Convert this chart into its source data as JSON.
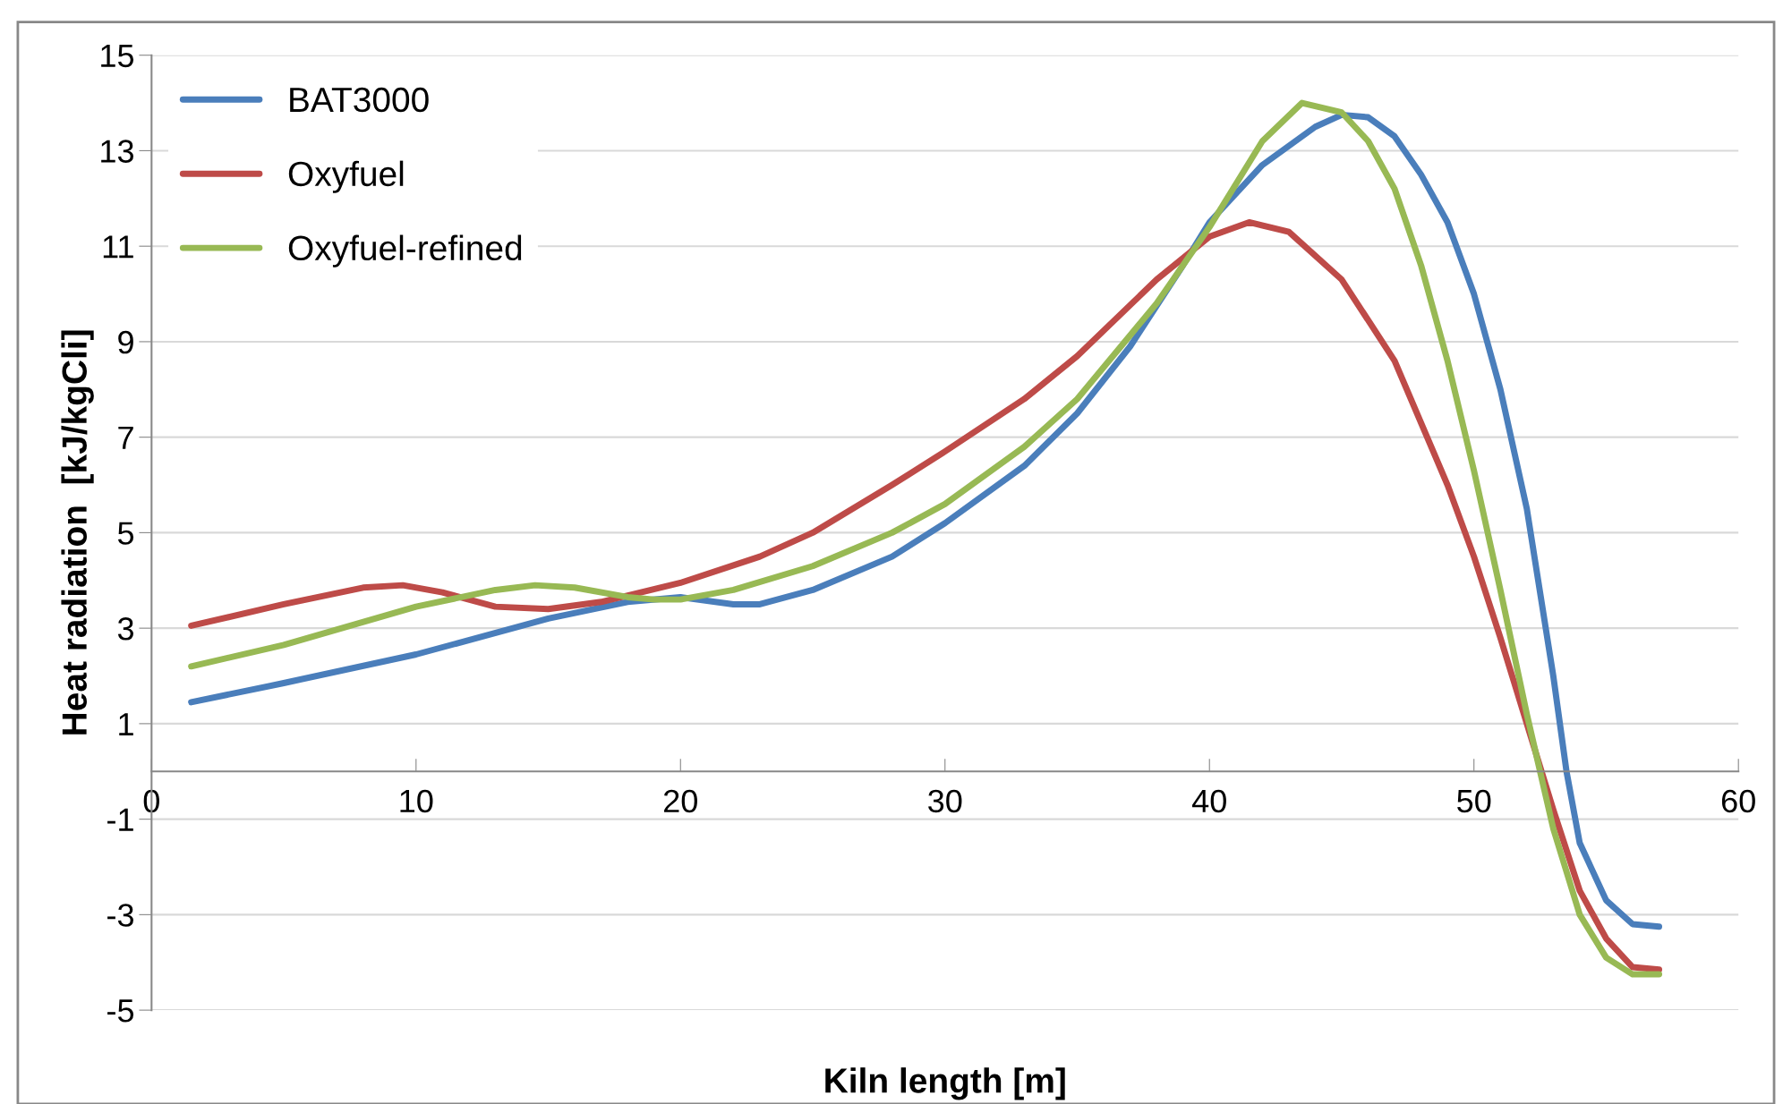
{
  "chart_data": {
    "type": "line",
    "xlabel": "Kiln length [m]",
    "ylabel": "Heat radiation  [kJ/kgCli]",
    "xlim": [
      0,
      60
    ],
    "xticks": [
      0,
      10,
      20,
      30,
      40,
      50,
      60
    ],
    "ylim": [
      -5,
      15
    ],
    "yticks": [
      -5,
      -3,
      -1,
      1,
      3,
      5,
      7,
      9,
      11,
      13,
      15
    ],
    "grid": "y",
    "legend": "top left",
    "marker": "none",
    "line_style": "solid",
    "series": [
      {
        "name": "BAT3000",
        "color": "#4a7ebb",
        "x": [
          1.5,
          5,
          10,
          15,
          18,
          20,
          22,
          23,
          25,
          28,
          30,
          33,
          35,
          37,
          39,
          40,
          42,
          44,
          45,
          46,
          47,
          48,
          49,
          50,
          51,
          52,
          53,
          53.5,
          54,
          55,
          56,
          57
        ],
        "values": [
          1.45,
          1.85,
          2.45,
          3.2,
          3.55,
          3.65,
          3.5,
          3.5,
          3.8,
          4.5,
          5.2,
          6.4,
          7.5,
          8.9,
          10.6,
          11.5,
          12.7,
          13.5,
          13.75,
          13.7,
          13.3,
          12.5,
          11.5,
          10.0,
          8.0,
          5.5,
          2.0,
          0.0,
          -1.5,
          -2.7,
          -3.2,
          -3.25
        ]
      },
      {
        "name": "Oxyfuel",
        "color": "#be4b48",
        "x": [
          1.5,
          5,
          8,
          9.5,
          11,
          13,
          15,
          17,
          20,
          23,
          25,
          28,
          30,
          33,
          35,
          38,
          40,
          41.5,
          43,
          45,
          47,
          49,
          50,
          51,
          52,
          53,
          54,
          55,
          56,
          57
        ],
        "values": [
          3.05,
          3.5,
          3.85,
          3.9,
          3.75,
          3.45,
          3.4,
          3.55,
          3.95,
          4.5,
          5.0,
          6.0,
          6.7,
          7.8,
          8.7,
          10.3,
          11.2,
          11.5,
          11.3,
          10.3,
          8.6,
          6.0,
          4.5,
          2.8,
          1.0,
          -0.8,
          -2.5,
          -3.5,
          -4.1,
          -4.15
        ]
      },
      {
        "name": "Oxyfuel-refined",
        "color": "#98b954",
        "x": [
          1.5,
          5,
          10,
          13,
          14.5,
          16,
          18,
          19,
          20,
          22,
          25,
          28,
          30,
          33,
          35,
          38,
          40,
          42,
          43.5,
          45,
          46,
          47,
          48,
          49,
          50,
          51,
          52,
          53,
          54,
          55,
          56,
          57
        ],
        "values": [
          2.2,
          2.65,
          3.45,
          3.8,
          3.9,
          3.85,
          3.65,
          3.6,
          3.6,
          3.8,
          4.3,
          5.0,
          5.6,
          6.8,
          7.8,
          9.8,
          11.4,
          13.2,
          14.0,
          13.8,
          13.2,
          12.2,
          10.6,
          8.6,
          6.3,
          3.8,
          1.2,
          -1.2,
          -3.0,
          -3.9,
          -4.25,
          -4.25
        ]
      }
    ]
  }
}
